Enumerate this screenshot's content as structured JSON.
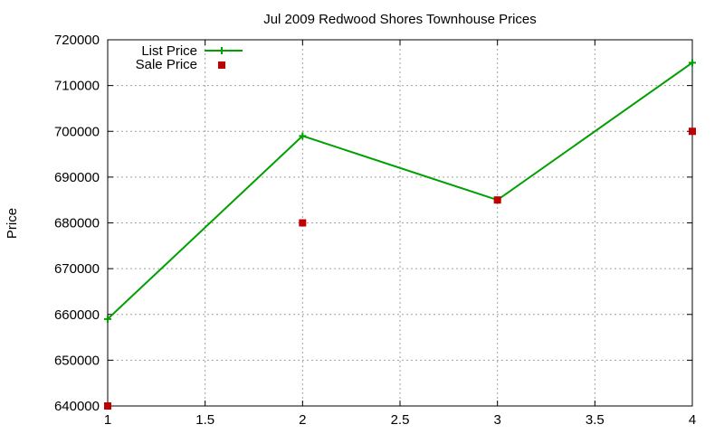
{
  "chart_data": {
    "type": "line",
    "title": "Jul 2009 Redwood Shores Townhouse Prices",
    "xlabel": "",
    "ylabel": "Price",
    "xlim": [
      1,
      4
    ],
    "ylim": [
      640000,
      720000
    ],
    "x_ticks": [
      1,
      1.5,
      2,
      2.5,
      3,
      3.5,
      4
    ],
    "x_tick_labels": [
      "1",
      "1.5",
      "2",
      "2.5",
      "3",
      "3.5",
      "4"
    ],
    "y_ticks": [
      640000,
      650000,
      660000,
      670000,
      680000,
      690000,
      700000,
      710000,
      720000
    ],
    "y_tick_labels": [
      "640000",
      "650000",
      "660000",
      "670000",
      "680000",
      "690000",
      "700000",
      "710000",
      "720000"
    ],
    "grid": true,
    "legend_position": "top-left",
    "series": [
      {
        "name": "List Price",
        "style": "line-with-plus-markers",
        "color": "#00a000",
        "x": [
          1,
          2,
          3,
          4
        ],
        "values": [
          659000,
          699000,
          685000,
          715000
        ]
      },
      {
        "name": "Sale Price",
        "style": "square-markers",
        "color": "#c00000",
        "x": [
          1,
          2,
          3,
          4
        ],
        "values": [
          640000,
          680000,
          685000,
          700000
        ]
      }
    ]
  }
}
